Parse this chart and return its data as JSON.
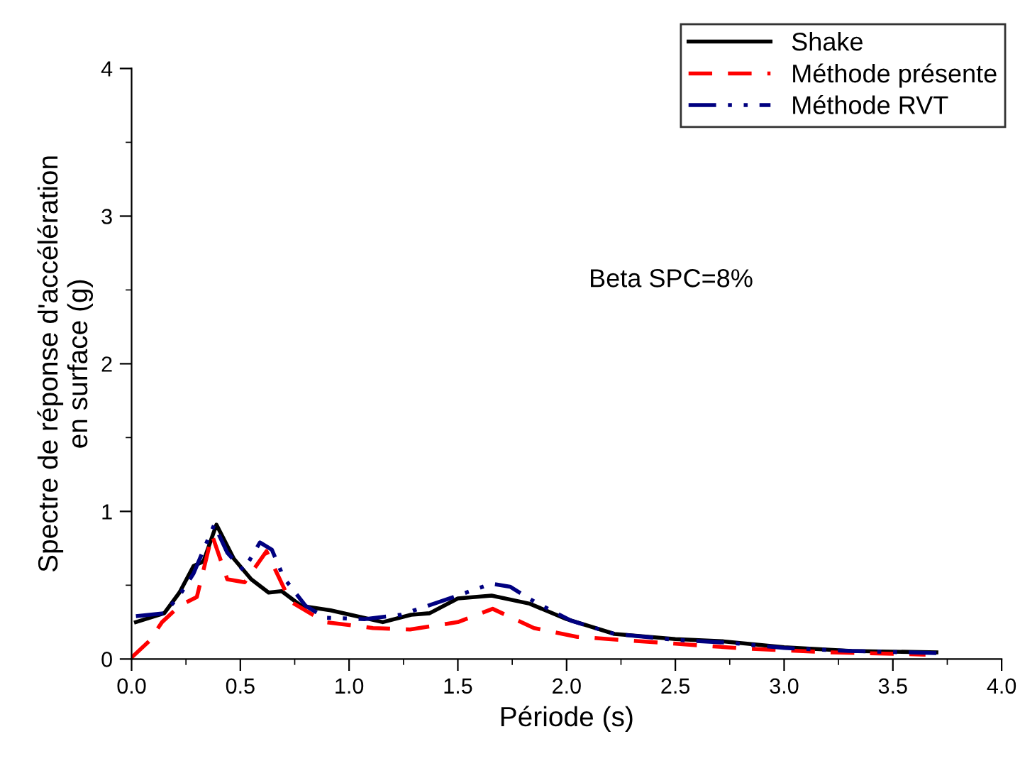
{
  "chart_data": {
    "type": "line",
    "xlabel": "Période (s)",
    "ylabel": "Spectre de réponse d'accélération\nen surface (g)",
    "xlim": [
      0,
      4
    ],
    "ylim": [
      0,
      4
    ],
    "xticks": [
      {
        "value": 0,
        "label": "0.0"
      },
      {
        "value": 0.5,
        "label": "0.5"
      },
      {
        "value": 1,
        "label": "1.0"
      },
      {
        "value": 1.5,
        "label": "1.5"
      },
      {
        "value": 2,
        "label": "2.0"
      },
      {
        "value": 2.5,
        "label": "2.5"
      },
      {
        "value": 3,
        "label": "3.0"
      },
      {
        "value": 3.5,
        "label": "3.5"
      },
      {
        "value": 4,
        "label": "4.0"
      }
    ],
    "yticks": [
      0,
      1,
      2,
      3,
      4
    ],
    "legend": "top right",
    "grid": false,
    "annotations": [
      "Beta SPC=8%"
    ],
    "series": [
      {
        "name": "Shake",
        "color": "#000000",
        "line_style": "solid",
        "x": [
          0.02,
          0.15,
          0.22,
          0.285,
          0.33,
          0.39,
          0.47,
          0.55,
          0.63,
          0.69,
          0.78,
          0.915,
          1.155,
          1.285,
          1.37,
          1.5,
          1.655,
          1.83,
          2.0,
          2.22,
          2.5,
          2.72,
          3.0,
          3.31,
          3.7
        ],
        "values": [
          0.25,
          0.31,
          0.45,
          0.63,
          0.66,
          0.91,
          0.68,
          0.54,
          0.45,
          0.46,
          0.36,
          0.33,
          0.25,
          0.3,
          0.31,
          0.41,
          0.43,
          0.375,
          0.27,
          0.17,
          0.135,
          0.12,
          0.08,
          0.055,
          0.045
        ]
      },
      {
        "name": "Méthode présente",
        "color": "#ff0000",
        "line_style": "dashed",
        "x": [
          0.0,
          0.08,
          0.14,
          0.22,
          0.3,
          0.37,
          0.44,
          0.52,
          0.62,
          0.73,
          0.89,
          1.11,
          1.28,
          1.5,
          1.66,
          1.85,
          2.05,
          2.44,
          2.83,
          3.22,
          3.65
        ],
        "values": [
          0.01,
          0.12,
          0.25,
          0.36,
          0.42,
          0.84,
          0.54,
          0.52,
          0.73,
          0.39,
          0.25,
          0.21,
          0.2,
          0.25,
          0.34,
          0.21,
          0.15,
          0.11,
          0.07,
          0.045,
          0.03
        ]
      },
      {
        "name": "Méthode RVT",
        "color": "#000080",
        "line_style": "dashdot",
        "x": [
          0.02,
          0.15,
          0.22,
          0.285,
          0.38,
          0.44,
          0.515,
          0.59,
          0.645,
          0.7,
          0.8,
          0.89,
          1.07,
          1.24,
          1.46,
          1.655,
          1.74,
          1.85,
          2.02,
          2.22,
          2.5,
          2.75,
          3.0,
          3.3,
          3.7
        ],
        "values": [
          0.29,
          0.31,
          0.43,
          0.58,
          0.91,
          0.72,
          0.6,
          0.79,
          0.74,
          0.55,
          0.36,
          0.28,
          0.27,
          0.3,
          0.41,
          0.51,
          0.49,
          0.39,
          0.26,
          0.17,
          0.13,
          0.11,
          0.075,
          0.055,
          0.04
        ]
      }
    ]
  }
}
